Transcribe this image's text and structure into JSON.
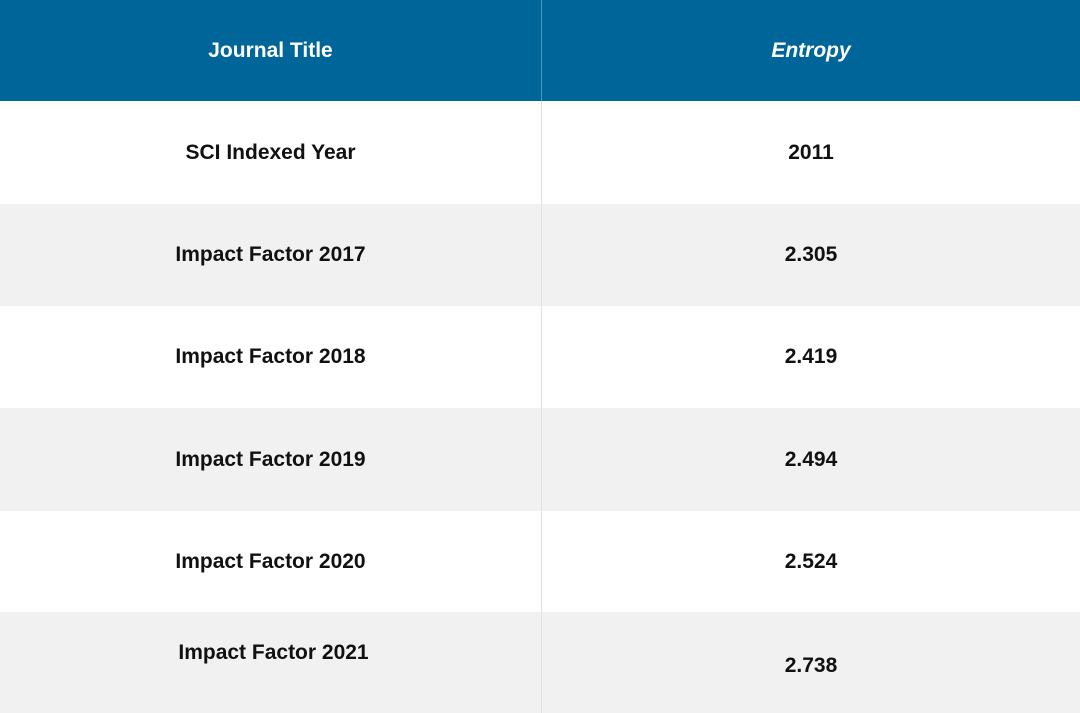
{
  "table": {
    "header": [
      "Journal Title",
      "Entropy"
    ],
    "rows": [
      [
        "SCI Indexed Year",
        "2011"
      ],
      [
        "Impact Factor 2017",
        "2.305"
      ],
      [
        "Impact Factor 2018",
        "2.419"
      ],
      [
        "Impact Factor 2019",
        "2.494"
      ],
      [
        "Impact Factor 2020",
        "2.524"
      ],
      [
        "Impact Factor 2021",
        "2.738"
      ]
    ]
  }
}
